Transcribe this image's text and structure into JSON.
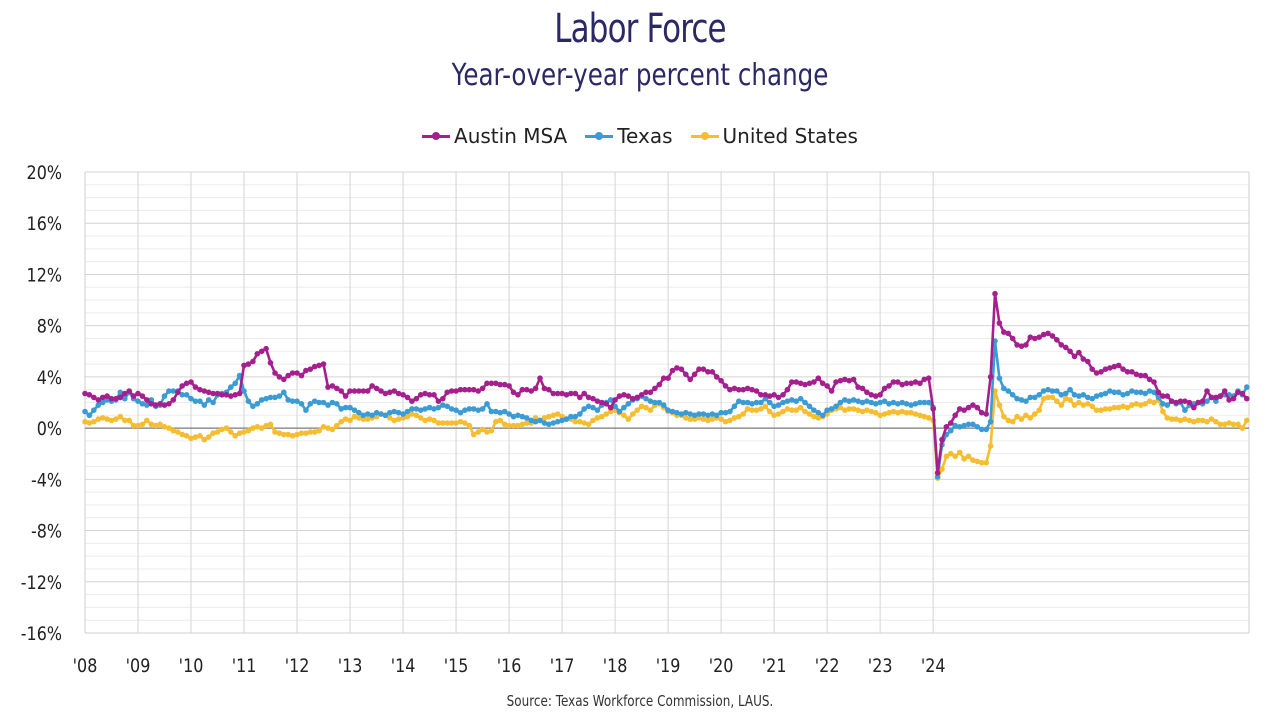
{
  "chart_data": {
    "type": "line",
    "title": "Labor Force",
    "subtitle": "Year-over-year percent change",
    "source": "Source: Texas Workforce Commission, LAUS.",
    "xlabel": "",
    "ylabel": "",
    "ylim": [
      -16,
      20
    ],
    "yticks": [
      20,
      16,
      12,
      8,
      4,
      0,
      -4,
      -8,
      -12,
      -16
    ],
    "ytick_labels": [
      "20%",
      "16%",
      "12%",
      "8%",
      "4%",
      "0%",
      "-4%",
      "-8%",
      "-12%",
      "-16%"
    ],
    "xtick_labels": [
      "'08",
      "'09",
      "'10",
      "'11",
      "'12",
      "'13",
      "'14",
      "'15",
      "'16",
      "'17",
      "'18",
      "'19",
      "'20",
      "'21",
      "'22",
      "'23",
      "'24"
    ],
    "start_year": 2008,
    "frequency": "monthly",
    "grid": true,
    "legend_position": "top-center",
    "series": [
      {
        "name": "Austin MSA",
        "color": "#a5208e",
        "values": [
          2.7,
          2.6,
          2.4,
          2.2,
          2.4,
          2.5,
          2.3,
          2.3,
          2.4,
          2.7,
          2.9,
          2.5,
          2.7,
          2.5,
          2.2,
          1.9,
          1.8,
          1.9,
          1.8,
          1.9,
          2.2,
          2.8,
          3.3,
          3.5,
          3.6,
          3.2,
          3.0,
          2.9,
          2.8,
          2.7,
          2.7,
          2.6,
          2.6,
          2.5,
          2.6,
          2.7,
          4.9,
          5.0,
          5.2,
          5.8,
          6.0,
          6.2,
          5.1,
          4.3,
          4.0,
          3.8,
          4.1,
          4.3,
          4.3,
          4.1,
          4.5,
          4.6,
          4.8,
          4.9,
          5.0,
          3.2,
          3.3,
          3.1,
          2.9,
          2.5,
          2.9,
          2.9,
          2.9,
          2.9,
          2.9,
          3.3,
          3.1,
          2.9,
          2.7,
          2.8,
          2.9,
          2.7,
          2.6,
          2.4,
          2.1,
          2.3,
          2.6,
          2.7,
          2.6,
          2.6,
          2.1,
          2.3,
          2.8,
          2.9,
          2.9,
          3.0,
          3.0,
          3.0,
          3.0,
          2.9,
          3.1,
          3.5,
          3.5,
          3.5,
          3.4,
          3.4,
          3.3,
          2.8,
          2.6,
          3.0,
          3.0,
          2.9,
          3.1,
          3.9,
          3.1,
          3.0,
          2.7,
          2.7,
          2.7,
          2.6,
          2.7,
          2.7,
          2.4,
          2.7,
          2.4,
          2.3,
          2.1,
          2.0,
          1.9,
          1.6,
          2.2,
          2.5,
          2.6,
          2.5,
          2.3,
          2.4,
          2.6,
          2.8,
          2.8,
          3.1,
          3.4,
          3.9,
          3.9,
          4.5,
          4.7,
          4.6,
          4.2,
          3.8,
          4.2,
          4.6,
          4.6,
          4.4,
          4.4,
          4.0,
          3.7,
          3.3,
          3.0,
          3.1,
          3.0,
          3.0,
          3.1,
          3.0,
          2.9,
          2.6,
          2.6,
          2.5,
          2.6,
          2.4,
          2.6,
          3.0,
          3.6,
          3.6,
          3.5,
          3.4,
          3.5,
          3.6,
          3.9,
          3.5,
          3.3,
          2.9,
          3.6,
          3.7,
          3.8,
          3.7,
          3.8,
          3.2,
          3.1,
          2.8,
          2.6,
          2.5,
          2.6,
          3.1,
          3.3,
          3.6,
          3.6,
          3.4,
          3.5,
          3.5,
          3.6,
          3.5,
          3.8,
          3.9,
          1.5,
          -3.5,
          -0.9,
          0.1,
          0.4,
          1.0,
          1.5,
          1.4,
          1.6,
          1.8,
          1.6,
          1.2,
          1.1,
          4.0,
          10.5,
          8.2,
          7.5,
          7.4,
          7.0,
          6.5,
          6.4,
          6.5,
          7.1,
          7.0,
          7.1,
          7.3,
          7.4,
          7.2,
          6.9,
          6.5,
          6.3,
          6.0,
          5.6,
          5.9,
          5.4,
          5.2,
          4.6,
          4.3,
          4.4,
          4.6,
          4.7,
          4.8,
          4.9,
          4.6,
          4.4,
          4.4,
          4.2,
          4.1,
          4.1,
          3.8,
          3.6,
          2.8,
          2.5,
          2.5,
          2.1,
          2.0,
          2.1,
          2.1,
          2.0,
          1.6,
          2.0,
          2.1,
          2.9,
          2.4,
          2.4,
          2.5,
          2.9,
          2.2,
          2.3,
          2.8,
          2.7,
          2.3
        ]
      },
      {
        "name": "Texas",
        "color": "#3a9bd5",
        "values": [
          1.3,
          1.0,
          1.4,
          1.8,
          2.0,
          2.2,
          2.1,
          2.2,
          2.8,
          2.3,
          2.8,
          2.3,
          2.1,
          1.9,
          1.8,
          2.2,
          1.7,
          1.8,
          2.5,
          2.9,
          2.9,
          2.9,
          2.6,
          2.6,
          2.3,
          2.1,
          2.1,
          1.8,
          2.2,
          2.0,
          2.6,
          2.7,
          2.8,
          3.2,
          3.5,
          4.1,
          2.9,
          2.1,
          1.7,
          1.9,
          2.2,
          2.3,
          2.4,
          2.4,
          2.5,
          2.8,
          2.2,
          2.1,
          2.1,
          1.9,
          1.4,
          1.9,
          2.1,
          2.0,
          2.0,
          1.8,
          2.0,
          1.9,
          1.5,
          1.6,
          1.6,
          1.4,
          1.2,
          1.0,
          1.1,
          1.0,
          1.2,
          1.1,
          1.0,
          1.2,
          1.3,
          1.2,
          1.1,
          1.3,
          1.5,
          1.5,
          1.4,
          1.5,
          1.6,
          1.5,
          1.6,
          1.8,
          1.7,
          1.5,
          1.4,
          1.2,
          1.4,
          1.5,
          1.5,
          1.4,
          1.5,
          1.9,
          1.3,
          1.3,
          1.2,
          1.3,
          1.1,
          0.9,
          1.0,
          0.9,
          0.8,
          0.6,
          0.5,
          0.6,
          0.4,
          0.3,
          0.4,
          0.5,
          0.6,
          0.7,
          0.9,
          0.9,
          1.1,
          1.5,
          1.7,
          1.6,
          1.4,
          1.8,
          2.0,
          2.2,
          1.7,
          1.3,
          1.6,
          1.9,
          2.2,
          2.3,
          2.5,
          2.3,
          2.1,
          2.0,
          2.0,
          1.8,
          1.4,
          1.3,
          1.2,
          1.1,
          1.2,
          1.1,
          1.0,
          1.1,
          1.1,
          1.0,
          1.1,
          1.0,
          1.2,
          1.2,
          1.3,
          1.7,
          2.1,
          2.0,
          2.0,
          1.9,
          2.0,
          2.0,
          2.3,
          2.0,
          1.7,
          1.8,
          2.0,
          2.1,
          2.2,
          2.1,
          2.3,
          2.0,
          1.7,
          1.4,
          1.2,
          1.0,
          1.4,
          1.5,
          1.7,
          2.0,
          2.2,
          2.1,
          2.2,
          2.1,
          2.0,
          2.1,
          2.0,
          1.9,
          2.0,
          2.1,
          1.9,
          2.0,
          1.9,
          2.0,
          1.9,
          1.8,
          1.9,
          2.0,
          2.0,
          2.0,
          1.6,
          -3.8,
          -1.3,
          -0.5,
          -0.2,
          0.2,
          0.1,
          0.2,
          0.3,
          0.3,
          0.1,
          -0.1,
          -0.1,
          0.5,
          6.8,
          3.9,
          3.1,
          2.9,
          2.6,
          2.3,
          2.2,
          2.1,
          2.4,
          2.4,
          2.6,
          2.9,
          3.0,
          2.9,
          2.9,
          2.6,
          2.7,
          3.0,
          2.6,
          2.5,
          2.6,
          2.4,
          2.3,
          2.5,
          2.6,
          2.7,
          2.9,
          2.8,
          2.8,
          2.6,
          2.7,
          2.9,
          2.8,
          2.8,
          2.7,
          2.9,
          2.8,
          2.4,
          1.9,
          1.8,
          2.1,
          1.9,
          2.0,
          1.4,
          1.8,
          1.9,
          2.0,
          1.9,
          2.1,
          2.4,
          2.1,
          2.5,
          2.6,
          2.6,
          2.5,
          2.9,
          2.6,
          3.2
        ]
      },
      {
        "name": "United States",
        "color": "#f5bd2f",
        "values": [
          0.5,
          0.4,
          0.5,
          0.7,
          0.8,
          0.7,
          0.6,
          0.7,
          0.9,
          0.6,
          0.6,
          0.2,
          0.2,
          0.3,
          0.6,
          0.3,
          0.2,
          0.3,
          0.1,
          0.0,
          -0.2,
          -0.3,
          -0.5,
          -0.6,
          -0.8,
          -0.7,
          -0.6,
          -0.9,
          -0.7,
          -0.4,
          -0.3,
          -0.1,
          0.0,
          -0.3,
          -0.6,
          -0.4,
          -0.3,
          -0.2,
          0.0,
          0.1,
          0.0,
          0.2,
          0.3,
          -0.3,
          -0.4,
          -0.5,
          -0.5,
          -0.6,
          -0.5,
          -0.4,
          -0.4,
          -0.3,
          -0.3,
          -0.2,
          0.1,
          0.0,
          -0.1,
          0.2,
          0.5,
          0.7,
          0.6,
          0.9,
          0.8,
          0.7,
          0.7,
          0.8,
          0.9,
          1.1,
          1.0,
          0.8,
          0.6,
          0.7,
          0.8,
          0.9,
          1.1,
          1.0,
          0.8,
          0.6,
          0.7,
          0.6,
          0.4,
          0.4,
          0.4,
          0.4,
          0.4,
          0.5,
          0.4,
          0.2,
          -0.5,
          -0.3,
          -0.1,
          -0.3,
          -0.2,
          0.5,
          0.6,
          0.3,
          0.2,
          0.2,
          0.2,
          0.3,
          0.4,
          0.4,
          0.8,
          0.6,
          0.8,
          0.9,
          1.0,
          1.1,
          0.9,
          0.7,
          0.7,
          0.5,
          0.5,
          0.4,
          0.3,
          0.6,
          0.8,
          0.9,
          1.1,
          1.3,
          1.4,
          1.2,
          1.0,
          0.7,
          1.1,
          1.4,
          1.7,
          1.6,
          1.4,
          1.8,
          1.9,
          1.6,
          1.3,
          1.2,
          1.0,
          1.0,
          0.8,
          0.7,
          0.7,
          0.8,
          0.7,
          0.6,
          0.7,
          0.8,
          0.7,
          0.5,
          0.6,
          0.8,
          0.9,
          1.1,
          1.5,
          1.4,
          1.4,
          1.5,
          1.7,
          1.3,
          1.0,
          1.1,
          1.3,
          1.5,
          1.4,
          1.4,
          1.6,
          1.3,
          1.1,
          0.9,
          0.8,
          0.9,
          1.1,
          1.4,
          1.5,
          1.6,
          1.4,
          1.5,
          1.5,
          1.4,
          1.3,
          1.4,
          1.3,
          1.2,
          1.0,
          1.1,
          1.2,
          1.3,
          1.2,
          1.3,
          1.2,
          1.2,
          1.1,
          1.0,
          0.9,
          0.8,
          0.6,
          -3.9,
          -3.2,
          -2.2,
          -2.0,
          -2.2,
          -1.9,
          -2.4,
          -2.2,
          -2.5,
          -2.6,
          -2.7,
          -2.7,
          -1.4,
          2.9,
          1.8,
          0.9,
          0.6,
          0.5,
          0.9,
          0.7,
          1.0,
          0.8,
          1.1,
          1.4,
          2.3,
          2.4,
          2.4,
          2.1,
          1.8,
          2.3,
          2.2,
          1.8,
          2.0,
          1.8,
          1.9,
          1.7,
          1.4,
          1.4,
          1.5,
          1.5,
          1.6,
          1.6,
          1.7,
          1.6,
          1.8,
          1.9,
          1.8,
          1.9,
          2.1,
          2.0,
          2.2,
          1.3,
          0.8,
          0.7,
          0.7,
          0.6,
          0.7,
          0.6,
          0.5,
          0.6,
          0.6,
          0.5,
          0.7,
          0.5,
          0.3,
          0.3,
          0.4,
          0.3,
          0.3,
          0.0,
          0.6
        ]
      }
    ]
  }
}
